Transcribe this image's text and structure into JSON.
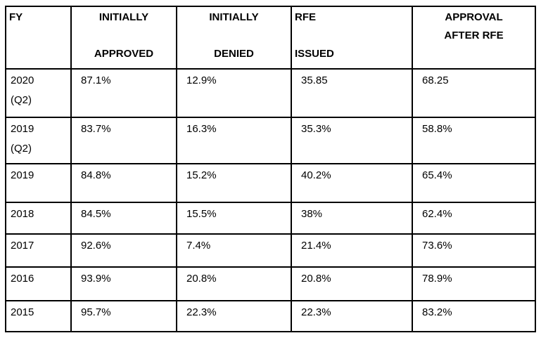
{
  "table": {
    "header": [
      "FY",
      "INITIALLY\n\nAPPROVED",
      "INITIALLY\n\nDENIED",
      "RFE\n\nISSUED",
      "APPROVAL\nAFTER RFE"
    ],
    "rows": [
      [
        "2020\n(Q2)",
        "87.1%",
        "12.9%",
        "35.85",
        "68.25"
      ],
      [
        "2019\n(Q2)",
        "83.7%",
        "16.3%",
        "35.3%",
        "58.8%"
      ],
      [
        "2019",
        "84.8%",
        "15.2%",
        "40.2%",
        "65.4%"
      ],
      [
        "2018",
        "84.5%",
        "15.5%",
        "38%",
        "62.4%"
      ],
      [
        "2017",
        "92.6%",
        "7.4%",
        "21.4%",
        "73.6%"
      ],
      [
        "2016",
        "93.9%",
        "20.8%",
        "20.8%",
        "78.9%"
      ],
      [
        "2015",
        "95.7%",
        "22.3%",
        "22.3%",
        "83.2%"
      ]
    ]
  },
  "colors": {
    "border": "#000000",
    "text": "#000000",
    "background": "#ffffff"
  },
  "chart_data": {
    "type": "table",
    "columns": [
      "FY",
      "INITIALLY APPROVED",
      "INITIALLY DENIED",
      "RFE ISSUED",
      "APPROVAL AFTER RFE"
    ],
    "rows": [
      [
        "2020 (Q2)",
        "87.1%",
        "12.9%",
        "35.85",
        "68.25"
      ],
      [
        "2019 (Q2)",
        "83.7%",
        "16.3%",
        "35.3%",
        "58.8%"
      ],
      [
        "2019",
        "84.8%",
        "15.2%",
        "40.2%",
        "65.4%"
      ],
      [
        "2018",
        "84.5%",
        "15.5%",
        "38%",
        "62.4%"
      ],
      [
        "2017",
        "92.6%",
        "7.4%",
        "21.4%",
        "73.6%"
      ],
      [
        "2016",
        "93.9%",
        "20.8%",
        "20.8%",
        "78.9%"
      ],
      [
        "2015",
        "95.7%",
        "22.3%",
        "22.3%",
        "83.2%"
      ]
    ]
  }
}
